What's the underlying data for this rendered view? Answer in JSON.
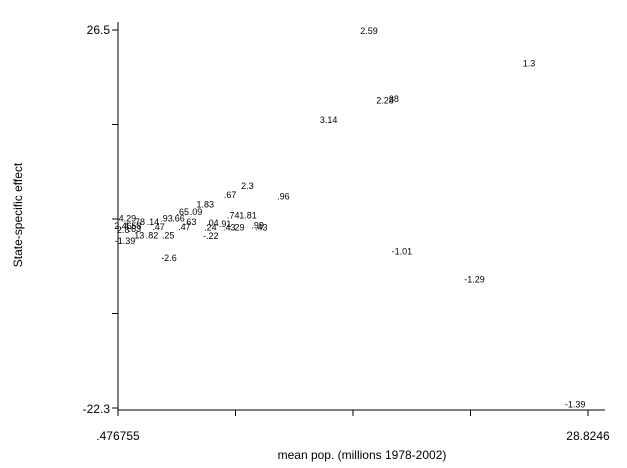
{
  "chart_data": {
    "type": "scatter",
    "marker": "text-label",
    "title": "",
    "xlabel": "mean pop. (millions 1978-2002)",
    "ylabel": "State-specific effect",
    "xlim": [
      0.476755,
      28.8246
    ],
    "ylim": [
      -22.3,
      26.5
    ],
    "x_tick_labels": [
      ".476755",
      "28.8246"
    ],
    "x_tick_values": [
      0.476755,
      7.56372,
      14.65068,
      21.73764,
      28.8246
    ],
    "y_tick_labels": [
      "26.5",
      "-22.3"
    ],
    "y_tick_values": [
      26.5,
      14.3,
      2.1,
      -10.1,
      -22.3
    ],
    "grid": false,
    "points": [
      {
        "x": 15.62,
        "y": 26.3,
        "label": "2.59"
      },
      {
        "x": 25.27,
        "y": 22.1,
        "label": "1.3"
      },
      {
        "x": 16.58,
        "y": 17.3,
        "label": "2.28"
      },
      {
        "x": 17.12,
        "y": 17.5,
        "label": "38"
      },
      {
        "x": 13.18,
        "y": 14.8,
        "label": "3.14"
      },
      {
        "x": 8.28,
        "y": 6.3,
        "label": "2.3"
      },
      {
        "x": 10.45,
        "y": 4.9,
        "label": ".96"
      },
      {
        "x": 7.24,
        "y": 5.1,
        "label": ".67"
      },
      {
        "x": 5.74,
        "y": 3.9,
        "label": "1.83"
      },
      {
        "x": 4.38,
        "y": 2.9,
        "label": ".65"
      },
      {
        "x": 5.18,
        "y": 2.9,
        "label": ".09"
      },
      {
        "x": 7.43,
        "y": 2.5,
        "label": ".74"
      },
      {
        "x": 8.32,
        "y": 2.5,
        "label": "1.81"
      },
      {
        "x": 3.4,
        "y": 2.1,
        "label": ".93"
      },
      {
        "x": 4.13,
        "y": 2.1,
        "label": ".66"
      },
      {
        "x": 1.04,
        "y": 2.1,
        "label": "4.29"
      },
      {
        "x": 1.73,
        "y": 1.6,
        "label": ".78"
      },
      {
        "x": 2.58,
        "y": 1.6,
        "label": ".14"
      },
      {
        "x": 4.83,
        "y": 1.6,
        "label": ".63"
      },
      {
        "x": 6.17,
        "y": 1.5,
        "label": ".04"
      },
      {
        "x": 6.94,
        "y": 1.4,
        "label": ".91"
      },
      {
        "x": 8.9,
        "y": 1.2,
        "label": ".99"
      },
      {
        "x": 0.78,
        "y": 1.1,
        "label": "2.46"
      },
      {
        "x": 1.37,
        "y": 1.1,
        "label": "4.58"
      },
      {
        "x": 2.92,
        "y": 1.0,
        "label": ".47"
      },
      {
        "x": 4.48,
        "y": 1.0,
        "label": ".47"
      },
      {
        "x": 6.05,
        "y": 0.9,
        "label": ".24"
      },
      {
        "x": 7.19,
        "y": 0.9,
        "label": ".43"
      },
      {
        "x": 7.73,
        "y": 0.9,
        "label": ".29"
      },
      {
        "x": 9.12,
        "y": 0.9,
        "label": ".43"
      },
      {
        "x": 0.79,
        "y": 0.6,
        "label": "2.8"
      },
      {
        "x": 1.49,
        "y": 0.7,
        "label": ".63"
      },
      {
        "x": 1.68,
        "y": -0.1,
        "label": ".13"
      },
      {
        "x": 2.53,
        "y": -0.1,
        "label": ".82"
      },
      {
        "x": 3.5,
        "y": -0.1,
        "label": ".25"
      },
      {
        "x": 6.07,
        "y": -0.2,
        "label": "-.22"
      },
      {
        "x": 0.9,
        "y": -0.8,
        "label": "-1.39"
      },
      {
        "x": 3.55,
        "y": -3.0,
        "label": "-2.6"
      },
      {
        "x": 17.6,
        "y": -2.2,
        "label": "-1.01"
      },
      {
        "x": 21.98,
        "y": -5.8,
        "label": "-1.29"
      },
      {
        "x": 28.05,
        "y": -21.9,
        "label": "-1.39"
      }
    ]
  }
}
